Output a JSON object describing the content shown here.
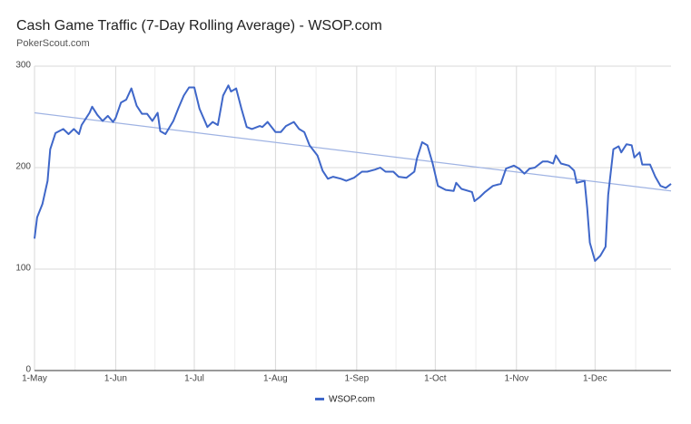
{
  "chart_data": {
    "type": "line",
    "title": "Cash Game Traffic (7-Day Rolling Average) - WSOP.com",
    "subtitle": "PokerScout.com",
    "xlim": [
      0,
      243
    ],
    "xticks": [
      {
        "value": 0,
        "label": "1-May"
      },
      {
        "value": 31,
        "label": "1-Jun"
      },
      {
        "value": 61,
        "label": "1-Jul"
      },
      {
        "value": 92,
        "label": "1-Aug"
      },
      {
        "value": 123,
        "label": "1-Sep"
      },
      {
        "value": 153,
        "label": "1-Oct"
      },
      {
        "value": 184,
        "label": "1-Nov"
      },
      {
        "value": 214,
        "label": "1-Dec"
      }
    ],
    "xminorticks": [
      15.5,
      46,
      76.5,
      107.5,
      138,
      168.5,
      199,
      229.5
    ],
    "ylim": [
      0,
      300
    ],
    "yticks": [
      0,
      100,
      200,
      300
    ],
    "grid": true,
    "legend": "bottom",
    "x": [
      0,
      1,
      3,
      5,
      6,
      8,
      11,
      13,
      15,
      17,
      18,
      21,
      22,
      24,
      26,
      28,
      30,
      31,
      33,
      35,
      37,
      39,
      41,
      43,
      45,
      47,
      48,
      50,
      53,
      55,
      57,
      59,
      61,
      63,
      66,
      68,
      70,
      72,
      74,
      75,
      77,
      79,
      81,
      83,
      86,
      87,
      89,
      92,
      94,
      96,
      99,
      101,
      103,
      105,
      108,
      110,
      112,
      114,
      117,
      119,
      122,
      125,
      127,
      130,
      132,
      134,
      137,
      139,
      142,
      145,
      146,
      148,
      150,
      152,
      154,
      157,
      160,
      161,
      163,
      167,
      168,
      170,
      172,
      175,
      178,
      180,
      182,
      183,
      185,
      187,
      189,
      191,
      194,
      196,
      198,
      199,
      201,
      204,
      206,
      207,
      210,
      211,
      212,
      214,
      216,
      218,
      219,
      221,
      223,
      224,
      226,
      228,
      229,
      231,
      232,
      235,
      237,
      239,
      241,
      243
    ],
    "series": [
      {
        "name": "WSOP.com",
        "color": "#3f67c9",
        "values": [
          130,
          151,
          164,
          187,
          218,
          234,
          238,
          233,
          238,
          233,
          242,
          254,
          260,
          252,
          246,
          251,
          245,
          249,
          264,
          267,
          278,
          261,
          253,
          253,
          246,
          254,
          236,
          233,
          246,
          259,
          271,
          279,
          279,
          258,
          240,
          245,
          242,
          271,
          281,
          275,
          278,
          258,
          240,
          238,
          241,
          240,
          245,
          235,
          235,
          241,
          245,
          238,
          235,
          222,
          212,
          197,
          189,
          191,
          189,
          187,
          190,
          196,
          196,
          198,
          200,
          196,
          196,
          191,
          190,
          196,
          209,
          225,
          222,
          204,
          182,
          178,
          177,
          185,
          179,
          176,
          167,
          171,
          176,
          182,
          184,
          199,
          201,
          202,
          199,
          194,
          199,
          200,
          206,
          206,
          204,
          212,
          204,
          202,
          197,
          185,
          187,
          160,
          126,
          108,
          113,
          122,
          173,
          218,
          221,
          215,
          223,
          222,
          210,
          215,
          203,
          203,
          191,
          182,
          180,
          184
        ]
      }
    ],
    "trendline": {
      "x": [
        0,
        243
      ],
      "values": [
        254,
        177
      ],
      "color": "#9fb3e3"
    }
  }
}
